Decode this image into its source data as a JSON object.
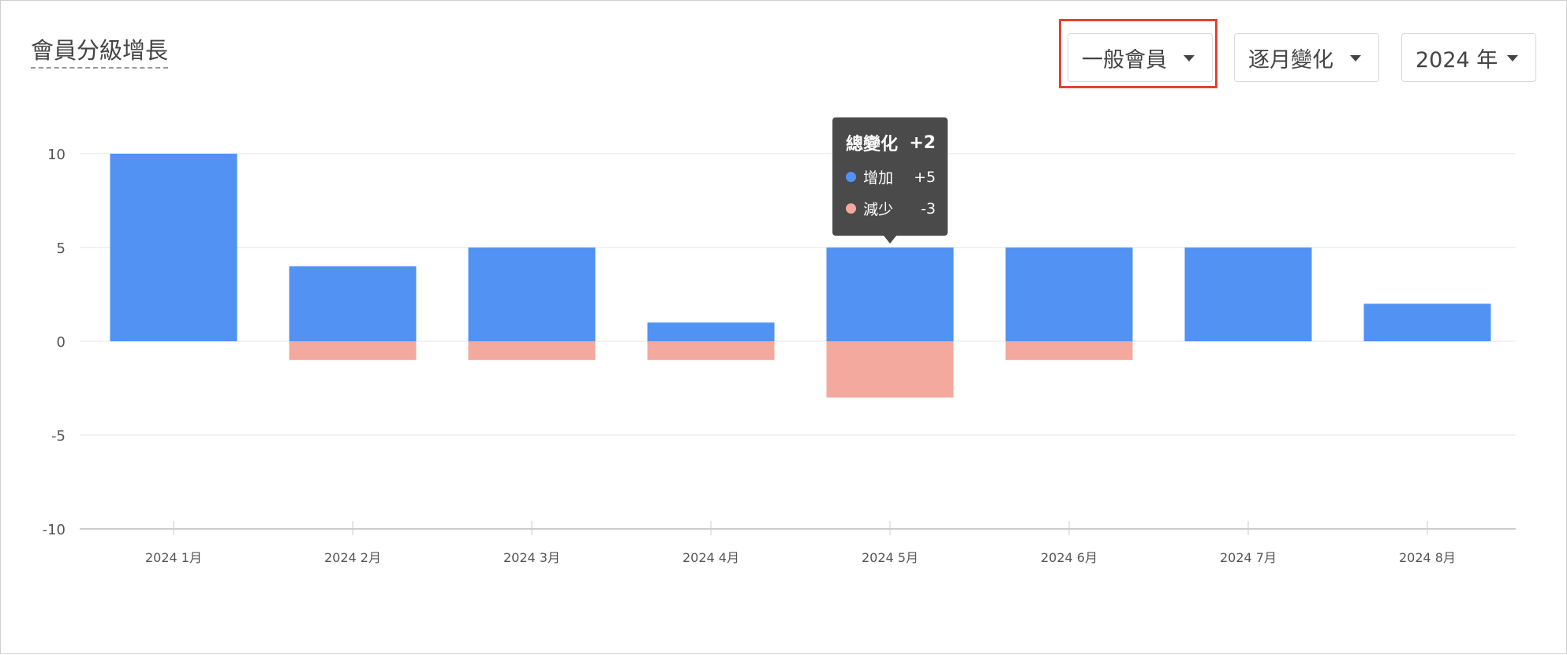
{
  "header": {
    "title": "會員分級增長"
  },
  "filters": {
    "member_type": "一般會員",
    "period": "逐月變化",
    "year": "2024 年"
  },
  "tooltip": {
    "title_label": "總變化",
    "title_value": "+2",
    "increase_label": "增加",
    "increase_value": "+5",
    "decrease_label": "減少",
    "decrease_value": "-3"
  },
  "colors": {
    "increase": "#5192f3",
    "decrease": "#f3a99d",
    "highlight": "#e0452f"
  },
  "chart_data": {
    "type": "bar",
    "categories": [
      "2024 1月",
      "2024 2月",
      "2024 3月",
      "2024 4月",
      "2024 5月",
      "2024 6月",
      "2024 7月",
      "2024 8月"
    ],
    "series": [
      {
        "values": [
          10,
          4,
          5,
          1,
          5,
          5,
          5,
          2
        ]
      },
      {
        "values": [
          0,
          -1,
          -1,
          -1,
          -3,
          -1,
          0,
          0
        ]
      }
    ],
    "ylim": [
      -10,
      10
    ],
    "yticks": [
      "10",
      "5",
      "0",
      "-5",
      "-10"
    ],
    "grid": true
  }
}
